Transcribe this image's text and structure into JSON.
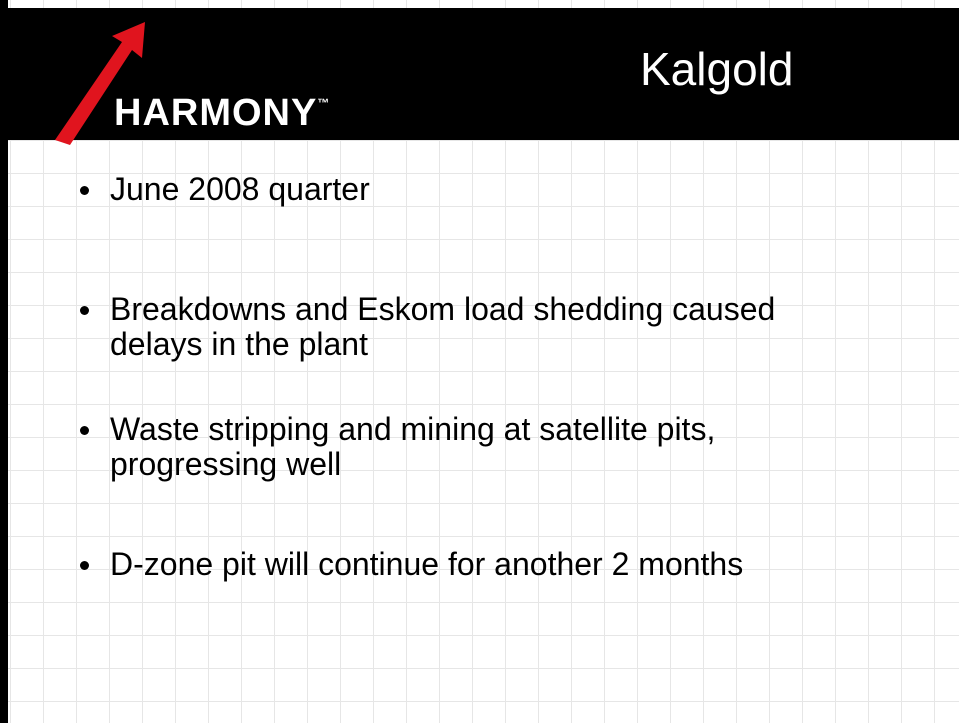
{
  "header": {
    "title": "Kalgold",
    "logo": {
      "text": "HARMONY",
      "mark": "™"
    }
  },
  "bullets": [
    [
      "June 2008 quarter"
    ],
    [
      "Breakdowns and Eskom load shedding caused",
      "delays in the plant"
    ],
    [
      "Waste stripping and mining at satellite pits,",
      "progressing well"
    ],
    [
      "D-zone pit will continue for another 2 months"
    ]
  ]
}
